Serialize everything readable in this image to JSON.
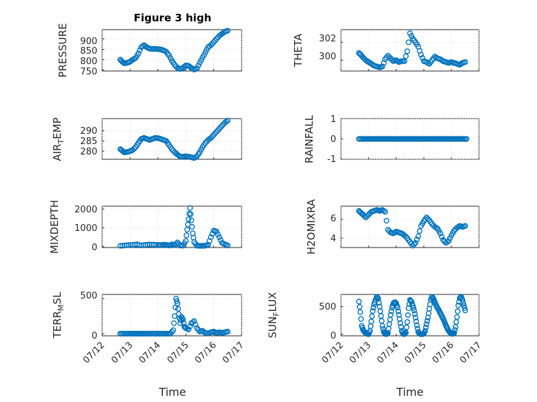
{
  "chart_data": [
    {
      "type": "scatter",
      "title": "Figure 3 high",
      "ylabel": "PRESSURE",
      "ylim": [
        745,
        945
      ],
      "yticks": [
        "750",
        "800",
        "850",
        "900"
      ],
      "xlim": [
        "07/12",
        "07/17"
      ],
      "grid": true,
      "series": [
        {
          "x": [
            12.65,
            12.72,
            12.8,
            12.9,
            13.0,
            13.1,
            13.2,
            13.3,
            13.4,
            13.5,
            13.6,
            13.7,
            13.8,
            13.9,
            14.0,
            14.1,
            14.2,
            14.3,
            14.4,
            14.5,
            14.6,
            14.7,
            14.8,
            14.9,
            15.0,
            15.1,
            15.2,
            15.3,
            15.4,
            15.5,
            15.6,
            15.7,
            15.8,
            15.9,
            16.0,
            16.1,
            16.2,
            16.3,
            16.4,
            16.5
          ],
          "y": [
            800,
            790,
            782,
            785,
            790,
            800,
            808,
            830,
            860,
            870,
            860,
            853,
            852,
            852,
            851,
            849,
            845,
            838,
            820,
            795,
            775,
            760,
            755,
            760,
            772,
            770,
            760,
            752,
            758,
            785,
            810,
            835,
            860,
            870,
            885,
            900,
            915,
            925,
            935,
            940
          ]
        }
      ]
    },
    {
      "type": "scatter",
      "ylabel": "THETA",
      "ylim": [
        298.8,
        303.4
      ],
      "yticks": [
        "300",
        "302"
      ],
      "xlim": [
        "07/12",
        "07/17"
      ],
      "grid": true,
      "series": [
        {
          "x": [
            12.65,
            12.72,
            12.8,
            12.9,
            13.0,
            13.1,
            13.2,
            13.3,
            13.4,
            13.5,
            13.6,
            13.7,
            13.8,
            13.9,
            14.0,
            14.1,
            14.2,
            14.3,
            14.4,
            14.5,
            14.6,
            14.7,
            14.8,
            14.9,
            15.0,
            15.1,
            15.2,
            15.3,
            15.4,
            15.5,
            15.6,
            15.7,
            15.8,
            15.9,
            16.0,
            16.1,
            16.2,
            16.3,
            16.4,
            16.5
          ],
          "y": [
            300.8,
            300.6,
            300.3,
            300.0,
            299.8,
            299.6,
            299.4,
            299.3,
            299.2,
            299.3,
            300.1,
            300.5,
            300.2,
            299.9,
            300.0,
            299.8,
            299.9,
            299.9,
            301.0,
            303.0,
            302.4,
            302.0,
            301.5,
            300.6,
            299.9,
            299.8,
            299.6,
            300.0,
            300.4,
            300.2,
            300.1,
            299.9,
            299.8,
            299.7,
            299.8,
            299.7,
            299.6,
            299.5,
            299.7,
            299.8
          ]
        }
      ]
    },
    {
      "type": "scatter",
      "ylabel": "AIR_TEMP",
      "ylim": [
        276,
        296
      ],
      "yticks": [
        "280",
        "285",
        "290"
      ],
      "xlim": [
        "07/12",
        "07/17"
      ],
      "grid": true,
      "series": [
        {
          "x": [
            12.65,
            12.72,
            12.8,
            12.9,
            13.0,
            13.1,
            13.2,
            13.3,
            13.4,
            13.5,
            13.6,
            13.7,
            13.8,
            13.9,
            14.0,
            14.1,
            14.2,
            14.3,
            14.4,
            14.5,
            14.6,
            14.7,
            14.8,
            14.9,
            15.0,
            15.1,
            15.2,
            15.3,
            15.4,
            15.5,
            15.6,
            15.7,
            15.8,
            15.9,
            16.0,
            16.1,
            16.2,
            16.3,
            16.4,
            16.5
          ],
          "y": [
            281,
            280.2,
            279.4,
            279.6,
            280,
            280.6,
            282,
            284,
            286,
            286.5,
            286,
            285.5,
            286,
            286.5,
            286.4,
            286,
            285.5,
            285,
            283,
            281,
            279.5,
            278.3,
            277.3,
            277.3,
            277.5,
            277.3,
            277,
            276.6,
            277.5,
            279.5,
            282,
            284,
            285.5,
            286.5,
            288,
            289.5,
            291,
            292.5,
            294,
            295
          ]
        }
      ]
    },
    {
      "type": "scatter",
      "ylabel": "RAINFALL",
      "ylim": [
        -1,
        1
      ],
      "yticks": [
        "-1",
        "0",
        "1"
      ],
      "xlim": [
        "07/12",
        "07/17"
      ],
      "grid": true,
      "series": [
        {
          "x": [
            12.65,
            12.75,
            12.85,
            12.95,
            13.05,
            13.15,
            13.25,
            13.35,
            13.45,
            13.55,
            13.65,
            13.75,
            13.85,
            13.95,
            14.05,
            14.15,
            14.25,
            14.35,
            14.45,
            14.55,
            14.65,
            14.75,
            14.85,
            14.95,
            15.05,
            15.15,
            15.25,
            15.35,
            15.45,
            15.55,
            15.65,
            15.75,
            15.85,
            15.95,
            16.05,
            16.15,
            16.25,
            16.35,
            16.45,
            16.55
          ],
          "y": [
            0,
            0,
            0,
            0,
            0,
            0,
            0,
            0,
            0,
            0,
            0,
            0,
            0,
            0,
            0,
            0,
            0,
            0,
            0,
            0,
            0,
            0,
            0,
            0,
            0,
            0,
            0,
            0,
            0,
            0,
            0,
            0,
            0,
            0,
            0,
            0,
            0,
            0,
            0,
            0
          ]
        }
      ]
    },
    {
      "type": "scatter",
      "ylabel": "MIXDEPTH",
      "ylim": [
        -50,
        2150
      ],
      "yticks": [
        "0",
        "1000",
        "2000"
      ],
      "xlim": [
        "07/12",
        "07/17"
      ],
      "grid": true,
      "series": [
        {
          "x": [
            12.65,
            12.8,
            12.95,
            13.1,
            13.25,
            13.4,
            13.55,
            13.7,
            13.85,
            14.0,
            14.1,
            14.2,
            14.3,
            14.4,
            14.5,
            14.6,
            14.7,
            14.8,
            14.9,
            15.0,
            15.05,
            15.1,
            15.15,
            15.2,
            15.25,
            15.3,
            15.4,
            15.5,
            15.6,
            15.7,
            15.8,
            15.9,
            16.0,
            16.1,
            16.2,
            16.3,
            16.4,
            16.5
          ],
          "y": [
            40,
            60,
            80,
            90,
            120,
            60,
            90,
            110,
            100,
            90,
            80,
            100,
            90,
            60,
            120,
            80,
            220,
            60,
            50,
            300,
            900,
            1450,
            2050,
            1400,
            700,
            250,
            50,
            40,
            40,
            50,
            100,
            500,
            850,
            800,
            500,
            200,
            120,
            60
          ]
        }
      ]
    },
    {
      "type": "scatter",
      "ylabel": "H2OMIXRA",
      "ylim": [
        3,
        7.4
      ],
      "yticks": [
        "4",
        "6"
      ],
      "xlim": [
        "07/12",
        "07/17"
      ],
      "grid": true,
      "series": [
        {
          "x": [
            12.65,
            12.72,
            12.8,
            12.9,
            13.0,
            13.1,
            13.2,
            13.3,
            13.4,
            13.5,
            13.6,
            13.7,
            13.8,
            13.9,
            14.0,
            14.1,
            14.2,
            14.3,
            14.4,
            14.5,
            14.6,
            14.7,
            14.8,
            14.9,
            15.0,
            15.1,
            15.2,
            15.3,
            15.4,
            15.5,
            15.6,
            15.7,
            15.8,
            15.9,
            16.0,
            16.1,
            16.2,
            16.3,
            16.4,
            16.5
          ],
          "y": [
            6.9,
            6.7,
            6.5,
            6.2,
            6.5,
            6.8,
            6.9,
            7.0,
            6.9,
            7.0,
            6.8,
            4.9,
            4.6,
            4.5,
            4.7,
            4.6,
            4.5,
            4.3,
            4.0,
            3.6,
            3.2,
            3.5,
            4.2,
            5.3,
            5.8,
            6.2,
            5.9,
            5.5,
            5.2,
            5.0,
            4.5,
            3.8,
            3.5,
            3.7,
            4.3,
            4.8,
            5.1,
            5.3,
            5.2,
            5.3
          ]
        }
      ]
    },
    {
      "type": "scatter",
      "ylabel": "TERR_MSL",
      "ylim": [
        -30,
        560
      ],
      "yticks": [
        "0",
        "500"
      ],
      "xlim": [
        "07/12",
        "07/17"
      ],
      "grid": true,
      "series": [
        {
          "x": [
            12.65,
            12.75,
            12.85,
            12.95,
            13.05,
            13.15,
            13.25,
            13.35,
            13.45,
            13.55,
            13.65,
            13.75,
            13.85,
            13.95,
            14.05,
            14.15,
            14.25,
            14.35,
            14.45,
            14.55,
            14.6,
            14.65,
            14.7,
            14.75,
            14.8,
            14.85,
            14.9,
            14.95,
            15.0,
            15.1,
            15.2,
            15.3,
            15.4,
            15.5,
            15.6,
            15.7,
            15.8,
            15.9,
            16.0,
            16.1,
            16.2,
            16.3,
            16.4,
            16.5
          ],
          "y": [
            0,
            0,
            0,
            0,
            0,
            0,
            0,
            0,
            0,
            0,
            0,
            0,
            0,
            0,
            0,
            0,
            0,
            0,
            0,
            50,
            250,
            500,
            430,
            280,
            150,
            240,
            200,
            100,
            80,
            60,
            150,
            180,
            80,
            30,
            40,
            10,
            5,
            20,
            30,
            10,
            20,
            10,
            20,
            30
          ]
        }
      ]
    },
    {
      "type": "scatter",
      "ylabel": "SUN_FLUX",
      "ylim": [
        -30,
        720
      ],
      "yticks": [
        "0",
        "500"
      ],
      "xlim": [
        "07/12",
        "07/17"
      ],
      "xticks": [
        "07/12",
        "07/13",
        "07/14",
        "07/15",
        "07/16",
        "07/17"
      ],
      "xlabel": "Time",
      "grid": true,
      "series": [
        {
          "x": [
            12.65,
            12.7,
            12.75,
            12.8,
            12.85,
            12.9,
            12.95,
            13.0,
            13.05,
            13.1,
            13.15,
            13.2,
            13.25,
            13.3,
            13.35,
            13.4,
            13.45,
            13.5,
            13.55,
            13.6,
            13.65,
            13.7,
            13.75,
            13.8,
            13.85,
            13.9,
            13.95,
            14.0,
            14.05,
            14.1,
            14.15,
            14.2,
            14.25,
            14.3,
            14.35,
            14.4,
            14.45,
            14.5,
            14.55,
            14.6,
            14.65,
            14.7,
            14.75,
            14.8,
            14.85,
            14.9,
            14.95,
            15.0,
            15.05,
            15.1,
            15.15,
            15.2,
            15.25,
            15.3,
            15.35,
            15.4,
            15.45,
            15.5,
            15.55,
            15.6,
            15.65,
            15.7,
            15.75,
            15.8,
            15.85,
            15.9,
            15.95,
            16.0,
            16.05,
            16.1,
            16.15,
            16.2,
            16.25,
            16.3,
            16.35,
            16.4,
            16.45,
            16.5
          ],
          "y": [
            590,
            400,
            150,
            80,
            40,
            20,
            5,
            0,
            60,
            230,
            420,
            540,
            620,
            680,
            640,
            500,
            330,
            150,
            40,
            5,
            0,
            20,
            180,
            350,
            480,
            560,
            580,
            560,
            480,
            350,
            200,
            60,
            5,
            0,
            30,
            220,
            470,
            620,
            590,
            520,
            430,
            300,
            160,
            40,
            5,
            0,
            0,
            10,
            60,
            180,
            300,
            460,
            620,
            680,
            640,
            580,
            520,
            470,
            430,
            380,
            330,
            280,
            220,
            160,
            110,
            60,
            30,
            10,
            5,
            20,
            130,
            310,
            520,
            650,
            680,
            620,
            520,
            430
          ]
        }
      ]
    }
  ]
}
